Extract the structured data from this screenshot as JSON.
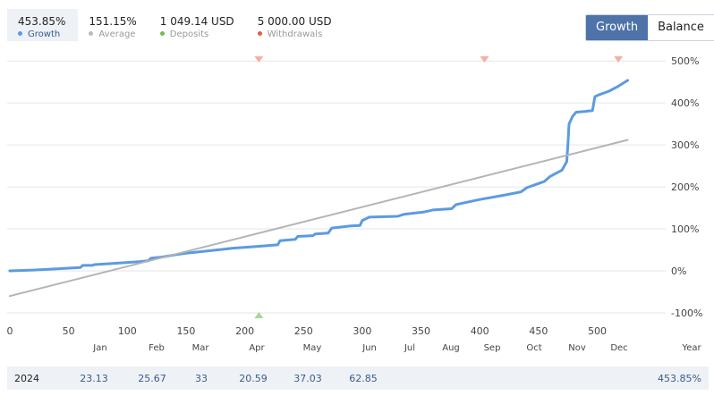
{
  "stats": [
    {
      "value": "453.85%",
      "label": "Growth",
      "color": "#5b9be0",
      "active": true
    },
    {
      "value": "151.15%",
      "label": "Average",
      "color": "#bbbbbb",
      "active": false
    },
    {
      "value": "1 049.14 USD",
      "label": "Deposits",
      "color": "#6cc04a",
      "active": false
    },
    {
      "value": "5 000.00 USD",
      "label": "Withdrawals",
      "color": "#e06040",
      "active": false
    }
  ],
  "toggle": {
    "growth_label": "Growth",
    "balance_label": "Balance",
    "selected": "Growth"
  },
  "months": [
    "Jan",
    "Feb",
    "Mar",
    "Apr",
    "May",
    "Jun",
    "Jul",
    "Aug",
    "Sep",
    "Oct",
    "Nov",
    "Dec",
    "Year"
  ],
  "year_row": {
    "year": "2024",
    "values": [
      "23.13",
      "25.67",
      "33",
      "20.59",
      "37.03",
      "62.85"
    ],
    "total": "453.85%"
  },
  "chart_data": {
    "type": "line",
    "x_ticks": [
      0,
      50,
      100,
      150,
      200,
      250,
      300,
      350,
      400,
      450,
      500
    ],
    "xlim": [
      0,
      530
    ],
    "y_ticks": [
      "500%",
      "400%",
      "300%",
      "200%",
      "100%",
      "0%",
      "-100%"
    ],
    "ylim": [
      -100,
      500
    ],
    "grid": true,
    "series": [
      {
        "name": "Growth",
        "color": "#5b9be0",
        "points": [
          [
            0,
            0
          ],
          [
            20,
            2
          ],
          [
            40,
            5
          ],
          [
            60,
            8
          ],
          [
            62,
            13
          ],
          [
            70,
            13
          ],
          [
            72,
            15
          ],
          [
            90,
            18
          ],
          [
            110,
            22
          ],
          [
            118,
            24
          ],
          [
            120,
            30
          ],
          [
            130,
            33
          ],
          [
            140,
            38
          ],
          [
            150,
            42
          ],
          [
            170,
            48
          ],
          [
            190,
            54
          ],
          [
            210,
            58
          ],
          [
            228,
            62
          ],
          [
            230,
            72
          ],
          [
            243,
            75
          ],
          [
            245,
            82
          ],
          [
            258,
            84
          ],
          [
            260,
            88
          ],
          [
            271,
            90
          ],
          [
            274,
            102
          ],
          [
            290,
            107
          ],
          [
            298,
            108
          ],
          [
            300,
            120
          ],
          [
            306,
            128
          ],
          [
            330,
            130
          ],
          [
            336,
            135
          ],
          [
            352,
            140
          ],
          [
            360,
            145
          ],
          [
            376,
            148
          ],
          [
            380,
            158
          ],
          [
            400,
            170
          ],
          [
            420,
            180
          ],
          [
            435,
            188
          ],
          [
            440,
            198
          ],
          [
            450,
            208
          ],
          [
            455,
            213
          ],
          [
            460,
            225
          ],
          [
            470,
            240
          ],
          [
            474,
            260
          ],
          [
            475,
            300
          ],
          [
            476,
            350
          ],
          [
            479,
            368
          ],
          [
            482,
            378
          ],
          [
            490,
            380
          ],
          [
            496,
            382
          ],
          [
            498,
            415
          ],
          [
            502,
            420
          ],
          [
            510,
            428
          ],
          [
            518,
            440
          ],
          [
            526,
            453.85
          ]
        ]
      },
      {
        "name": "Average",
        "color": "#b4b4b4",
        "points": [
          [
            0,
            -60
          ],
          [
            526,
            312
          ]
        ]
      }
    ],
    "markers": [
      {
        "type": "withdrawal",
        "x": 212,
        "color": "#f4b0a4"
      },
      {
        "type": "withdrawal",
        "x": 404,
        "color": "#f4b0a4"
      },
      {
        "type": "withdrawal",
        "x": 518,
        "color": "#f4b0a4"
      },
      {
        "type": "deposit",
        "x": 212,
        "color": "#a6d89a"
      }
    ]
  }
}
